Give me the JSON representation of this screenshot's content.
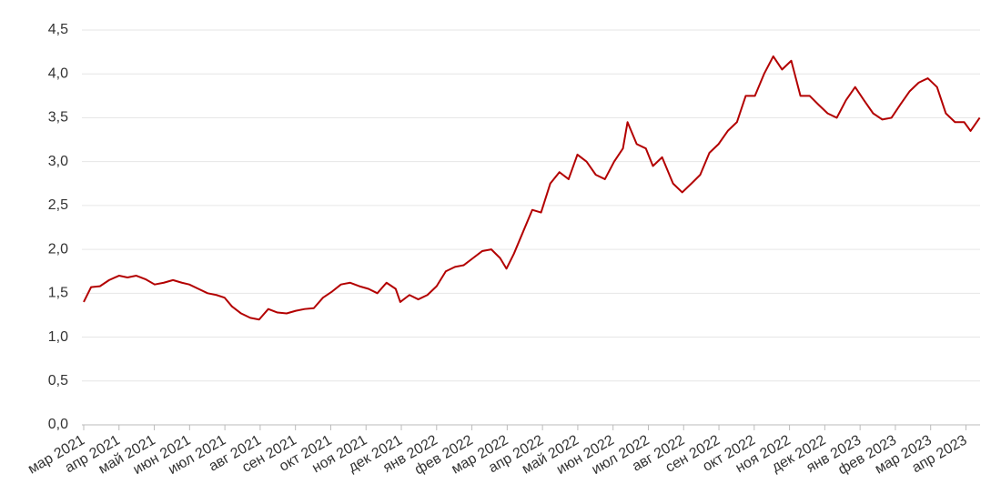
{
  "chart_data": {
    "type": "line",
    "x": [
      0,
      0.21,
      0.46,
      0.72,
      1.0,
      1.24,
      1.49,
      1.75,
      2.01,
      2.27,
      2.53,
      2.78,
      2.99,
      3.25,
      3.51,
      3.76,
      3.99,
      4.2,
      4.46,
      4.72,
      4.97,
      5.23,
      5.49,
      5.75,
      6.01,
      6.26,
      6.52,
      6.78,
      7.04,
      7.29,
      7.55,
      7.81,
      8.07,
      8.32,
      8.58,
      8.84,
      8.97,
      9.23,
      9.48,
      9.74,
      10.0,
      10.26,
      10.52,
      10.77,
      11.03,
      11.29,
      11.55,
      11.8,
      11.98,
      12.19,
      12.45,
      12.71,
      12.96,
      13.22,
      13.48,
      13.74,
      13.99,
      14.25,
      14.51,
      14.77,
      15.03,
      15.28,
      15.41,
      15.67,
      15.93,
      16.13,
      16.39,
      16.7,
      16.96,
      17.22,
      17.47,
      17.73,
      17.99,
      18.25,
      18.51,
      18.76,
      19.02,
      19.28,
      19.54,
      19.79,
      20.05,
      20.31,
      20.57,
      20.82,
      21.08,
      21.34,
      21.6,
      21.86,
      22.11,
      22.37,
      22.63,
      22.89,
      23.14,
      23.4,
      23.66,
      23.92,
      24.18,
      24.43,
      24.69,
      24.95,
      25.13,
      25.39
    ],
    "series": [
      {
        "color": "#b30000",
        "values": [
          1.4,
          1.57,
          1.58,
          1.65,
          1.7,
          1.68,
          1.7,
          1.66,
          1.6,
          1.62,
          1.65,
          1.62,
          1.6,
          1.55,
          1.5,
          1.48,
          1.45,
          1.35,
          1.27,
          1.22,
          1.2,
          1.32,
          1.28,
          1.27,
          1.3,
          1.32,
          1.33,
          1.45,
          1.52,
          1.6,
          1.62,
          1.58,
          1.55,
          1.5,
          1.62,
          1.55,
          1.4,
          1.48,
          1.43,
          1.48,
          1.58,
          1.75,
          1.8,
          1.82,
          1.9,
          1.98,
          2.0,
          1.9,
          1.78,
          1.95,
          2.2,
          2.45,
          2.42,
          2.75,
          2.88,
          2.8,
          3.08,
          3.0,
          2.85,
          2.8,
          3.0,
          3.15,
          3.45,
          3.2,
          3.15,
          2.95,
          3.05,
          2.75,
          2.65,
          2.75,
          2.85,
          3.1,
          3.2,
          3.35,
          3.45,
          3.75,
          3.75,
          4.0,
          4.2,
          4.05,
          4.15,
          3.75,
          3.75,
          3.65,
          3.55,
          3.5,
          3.7,
          3.85,
          3.7,
          3.55,
          3.48,
          3.5,
          3.65,
          3.8,
          3.9,
          3.95,
          3.85,
          3.55,
          3.45,
          3.45,
          3.35,
          3.5
        ]
      }
    ],
    "xlim": [
      0,
      25.4
    ],
    "xticks": [
      {
        "value": 0,
        "label": "мар 2021"
      },
      {
        "value": 1,
        "label": "апр 2021"
      },
      {
        "value": 2,
        "label": "май 2021"
      },
      {
        "value": 3,
        "label": "июн 2021"
      },
      {
        "value": 4,
        "label": "июл 2021"
      },
      {
        "value": 5,
        "label": "авг 2021"
      },
      {
        "value": 6,
        "label": "сен 2021"
      },
      {
        "value": 7,
        "label": "окт 2021"
      },
      {
        "value": 8,
        "label": "ноя 2021"
      },
      {
        "value": 9,
        "label": "дек 2021"
      },
      {
        "value": 10,
        "label": "янв 2022"
      },
      {
        "value": 11,
        "label": "фев 2022"
      },
      {
        "value": 12,
        "label": "мар 2022"
      },
      {
        "value": 13,
        "label": "апр 2022"
      },
      {
        "value": 14,
        "label": "май 2022"
      },
      {
        "value": 15,
        "label": "июн 2022"
      },
      {
        "value": 16,
        "label": "июл 2022"
      },
      {
        "value": 17,
        "label": "авг 2022"
      },
      {
        "value": 18,
        "label": "сен 2022"
      },
      {
        "value": 19,
        "label": "окт 2022"
      },
      {
        "value": 20,
        "label": "ноя 2022"
      },
      {
        "value": 21,
        "label": "дек 2022"
      },
      {
        "value": 22,
        "label": "янв 2023"
      },
      {
        "value": 23,
        "label": "фев 2023"
      },
      {
        "value": 24,
        "label": "мар 2023"
      },
      {
        "value": 25,
        "label": "апр 2023"
      }
    ],
    "ylim": [
      0,
      4.5
    ],
    "yticks": [
      {
        "value": 0,
        "label": "0,0"
      },
      {
        "value": 0.5,
        "label": "0,5"
      },
      {
        "value": 1,
        "label": "1,0"
      },
      {
        "value": 1.5,
        "label": "1,5"
      },
      {
        "value": 2,
        "label": "2,0"
      },
      {
        "value": 2.5,
        "label": "2,5"
      },
      {
        "value": 3,
        "label": "3,0"
      },
      {
        "value": 3.5,
        "label": "3,5"
      },
      {
        "value": 4,
        "label": "4,0"
      },
      {
        "value": 4.5,
        "label": "4,5"
      }
    ],
    "grid": true
  }
}
